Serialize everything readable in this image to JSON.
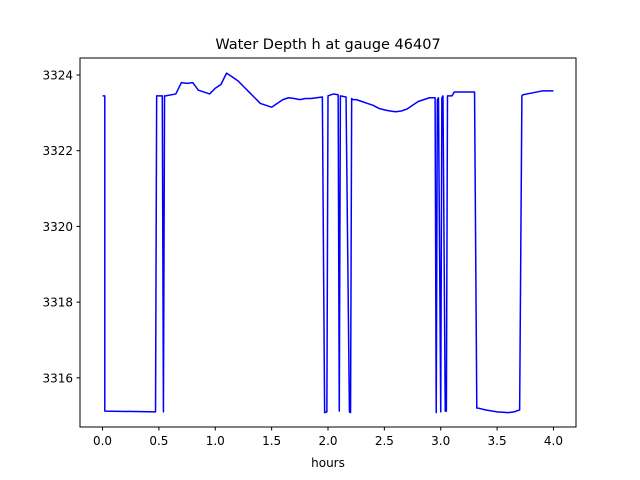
{
  "chart_data": {
    "type": "line",
    "title": "Water Depth h at gauge 46407",
    "xlabel": "hours",
    "ylabel": "",
    "xlim": [
      -0.2,
      4.2
    ],
    "ylim": [
      3314.7,
      3324.45
    ],
    "xticks": [
      0.0,
      0.5,
      1.0,
      1.5,
      2.0,
      2.5,
      3.0,
      3.5,
      4.0
    ],
    "xtick_labels": [
      "0.0",
      "0.5",
      "1.0",
      "1.5",
      "2.0",
      "2.5",
      "3.0",
      "3.5",
      "4.0"
    ],
    "yticks": [
      3316,
      3318,
      3320,
      3322,
      3324
    ],
    "ytick_labels": [
      "3316",
      "3318",
      "3320",
      "3322",
      "3324"
    ],
    "grid": false,
    "series": [
      {
        "color": "#0000ff",
        "x": [
          0.0,
          0.02,
          0.02,
          0.47,
          0.48,
          0.53,
          0.54,
          0.55,
          0.56,
          0.65,
          0.7,
          0.75,
          0.8,
          0.85,
          0.9,
          0.95,
          1.0,
          1.05,
          1.1,
          1.15,
          1.2,
          1.25,
          1.3,
          1.35,
          1.4,
          1.45,
          1.5,
          1.55,
          1.6,
          1.65,
          1.7,
          1.75,
          1.8,
          1.85,
          1.9,
          1.95,
          1.97,
          1.99,
          2.0,
          2.05,
          2.09,
          2.1,
          2.11,
          2.16,
          2.19,
          2.2,
          2.21,
          2.22,
          2.25,
          2.3,
          2.35,
          2.4,
          2.45,
          2.5,
          2.55,
          2.6,
          2.65,
          2.7,
          2.75,
          2.8,
          2.85,
          2.9,
          2.95,
          2.96,
          2.97,
          2.98,
          3.0,
          3.01,
          3.02,
          3.04,
          3.05,
          3.06,
          3.1,
          3.11,
          3.12,
          3.2,
          3.25,
          3.3,
          3.32,
          3.33,
          3.4,
          3.5,
          3.6,
          3.65,
          3.7,
          3.72,
          3.73,
          3.8,
          3.9,
          4.0
        ],
        "y": [
          3323.45,
          3323.45,
          3315.12,
          3315.1,
          3323.45,
          3323.45,
          3315.1,
          3323.45,
          3323.45,
          3323.5,
          3323.8,
          3323.78,
          3323.8,
          3323.6,
          3323.55,
          3323.5,
          3323.65,
          3323.75,
          3324.05,
          3323.95,
          3323.85,
          3323.7,
          3323.55,
          3323.4,
          3323.25,
          3323.2,
          3323.15,
          3323.25,
          3323.35,
          3323.4,
          3323.38,
          3323.35,
          3323.38,
          3323.38,
          3323.4,
          3323.42,
          3315.08,
          3315.1,
          3323.45,
          3323.5,
          3323.48,
          3315.12,
          3323.45,
          3323.42,
          3315.1,
          3315.08,
          3323.38,
          3323.35,
          3323.35,
          3323.3,
          3323.25,
          3323.2,
          3323.12,
          3323.08,
          3323.05,
          3323.03,
          3323.05,
          3323.1,
          3323.2,
          3323.3,
          3323.35,
          3323.4,
          3323.4,
          3315.08,
          3323.35,
          3323.4,
          3315.1,
          3323.4,
          3323.45,
          3315.12,
          3315.12,
          3323.45,
          3323.45,
          3323.5,
          3323.55,
          3323.55,
          3323.55,
          3323.55,
          3315.2,
          3315.2,
          3315.15,
          3315.1,
          3315.08,
          3315.1,
          3315.15,
          3323.45,
          3323.48,
          3323.52,
          3323.58,
          3323.58
        ]
      }
    ]
  }
}
